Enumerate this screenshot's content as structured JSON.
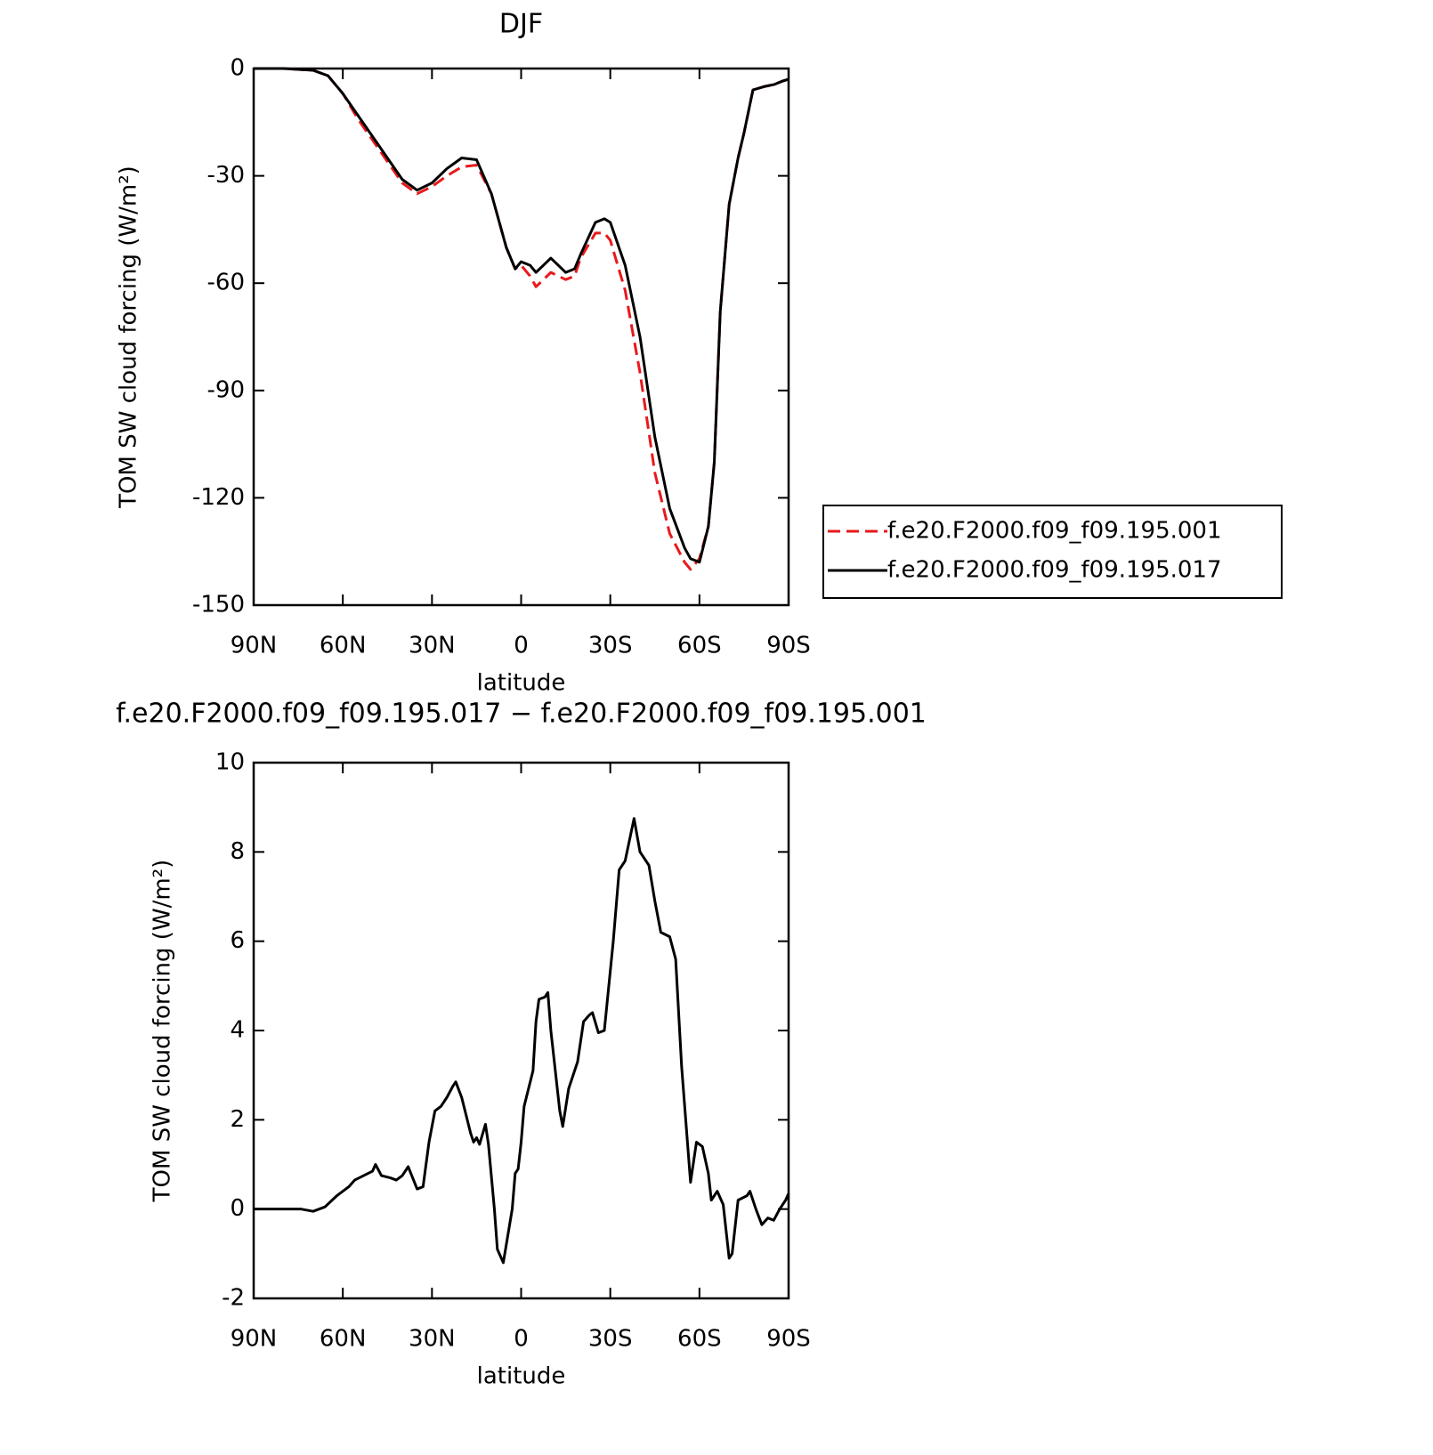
{
  "chart_data": [
    {
      "type": "line",
      "title": "DJF",
      "y_label": "TOM SW cloud forcing (W/m²)",
      "x_label": "latitude",
      "x": [
        90,
        80,
        70,
        65,
        60,
        55,
        50,
        45,
        40,
        35,
        30,
        25,
        20,
        15,
        10,
        5,
        2,
        0,
        -3,
        -5,
        -10,
        -15,
        -18,
        -20,
        -25,
        -28,
        -30,
        -35,
        -40,
        -45,
        -50,
        -55,
        -57,
        -60,
        -63,
        -65,
        -67,
        -70,
        -73,
        -75,
        -78,
        -82,
        -85,
        -88,
        -90
      ],
      "series": [
        {
          "name": "f.e20.F2000.f09_f09.195.001",
          "color": "#e8191c",
          "line_style": "dashed",
          "values": [
            0,
            0,
            -0.5,
            -2,
            -7,
            -14,
            -20,
            -26,
            -32,
            -35,
            -33,
            -30,
            -27.5,
            -27,
            -35,
            -50,
            -56,
            -55,
            -58,
            -61,
            -57,
            -59,
            -58,
            -53,
            -46,
            -46,
            -48,
            -62,
            -85,
            -113,
            -130,
            -138,
            -140,
            -137,
            -128,
            -110,
            -68,
            -38,
            -25,
            -18,
            -6,
            -5,
            -4.5,
            -3.5,
            -3
          ]
        },
        {
          "name": "f.e20.F2000.f09_f09.195.017",
          "color": "#000000",
          "line_style": "solid",
          "values": [
            0,
            0,
            -0.5,
            -2,
            -7,
            -13,
            -19,
            -25,
            -31,
            -34,
            -32,
            -28,
            -25,
            -25.5,
            -35,
            -50,
            -56,
            -54,
            -55,
            -57,
            -53,
            -57,
            -56,
            -52,
            -43,
            -42,
            -43,
            -55,
            -75,
            -103,
            -123,
            -134,
            -137,
            -138,
            -128,
            -110,
            -68,
            -38,
            -25,
            -18,
            -6,
            -5,
            -4.5,
            -3.5,
            -3
          ]
        }
      ],
      "xlim": [
        90,
        -90
      ],
      "xticks": [
        {
          "value": 90,
          "label": "90N"
        },
        {
          "value": 60,
          "label": "60N"
        },
        {
          "value": 30,
          "label": "30N"
        },
        0,
        {
          "value": -30,
          "label": "30S"
        },
        {
          "value": -60,
          "label": "60S"
        },
        {
          "value": -90,
          "label": "90S"
        }
      ],
      "ylim": [
        -150,
        0
      ],
      "yticks": [
        0,
        -30,
        -60,
        -90,
        -120,
        -150
      ],
      "legend": "right"
    },
    {
      "type": "line",
      "title": "f.e20.F2000.f09_f09.195.017 − f.e20.F2000.f09_f09.195.001",
      "y_label": "TOM SW cloud forcing (W/m²)",
      "x_label": "latitude",
      "x": [
        90,
        80,
        74,
        70,
        66,
        62,
        58,
        56,
        53,
        50,
        49,
        47,
        44,
        42,
        40,
        38,
        35,
        33,
        31,
        29,
        27,
        25,
        23,
        22,
        20,
        17,
        16,
        15,
        14,
        12,
        11,
        9,
        8,
        6,
        5,
        3,
        2,
        1,
        0,
        -1,
        -4,
        -5,
        -6,
        -8,
        -9,
        -10,
        -13,
        -14,
        -16,
        -19,
        -21,
        -23,
        -24,
        -26,
        -28,
        -31,
        -33,
        -35,
        -38,
        -40,
        -43,
        -45,
        -47,
        -50,
        -52,
        -54,
        -57,
        -59,
        -61,
        -63,
        -64,
        -66,
        -68,
        -70,
        -71,
        -73,
        -76,
        -77,
        -79,
        -81,
        -83,
        -85,
        -87,
        -89,
        -90
      ],
      "series": [
        {
          "color": "#000000",
          "line_style": "solid",
          "values": [
            0,
            0,
            0,
            -0.05,
            0.05,
            0.3,
            0.5,
            0.65,
            0.75,
            0.85,
            1.0,
            0.75,
            0.7,
            0.65,
            0.75,
            0.95,
            0.45,
            0.5,
            1.5,
            2.2,
            2.3,
            2.5,
            2.75,
            2.85,
            2.5,
            1.7,
            1.5,
            1.6,
            1.45,
            1.9,
            1.45,
            0,
            -0.9,
            -1.2,
            -0.8,
            0,
            0.8,
            0.9,
            1.5,
            2.3,
            3.1,
            4.2,
            4.7,
            4.75,
            4.85,
            4.0,
            2.2,
            1.85,
            2.7,
            3.3,
            4.2,
            4.35,
            4.4,
            3.95,
            4.0,
            6.0,
            7.6,
            7.8,
            8.75,
            8.0,
            7.7,
            6.9,
            6.2,
            6.1,
            5.6,
            3.2,
            0.6,
            1.5,
            1.4,
            0.8,
            0.2,
            0.4,
            0.1,
            -1.1,
            -1.0,
            0.2,
            0.3,
            0.4,
            0,
            -0.35,
            -0.2,
            -0.25,
            0,
            0.2,
            0.35
          ]
        }
      ],
      "xlim": [
        90,
        -90
      ],
      "xticks": [
        {
          "value": 90,
          "label": "90N"
        },
        {
          "value": 60,
          "label": "60N"
        },
        {
          "value": 30,
          "label": "30N"
        },
        0,
        {
          "value": -30,
          "label": "30S"
        },
        {
          "value": -60,
          "label": "60S"
        },
        {
          "value": -90,
          "label": "90S"
        }
      ],
      "ylim": [
        -2,
        10
      ],
      "yticks": [
        -2,
        0,
        2,
        4,
        6,
        8,
        10
      ]
    }
  ]
}
